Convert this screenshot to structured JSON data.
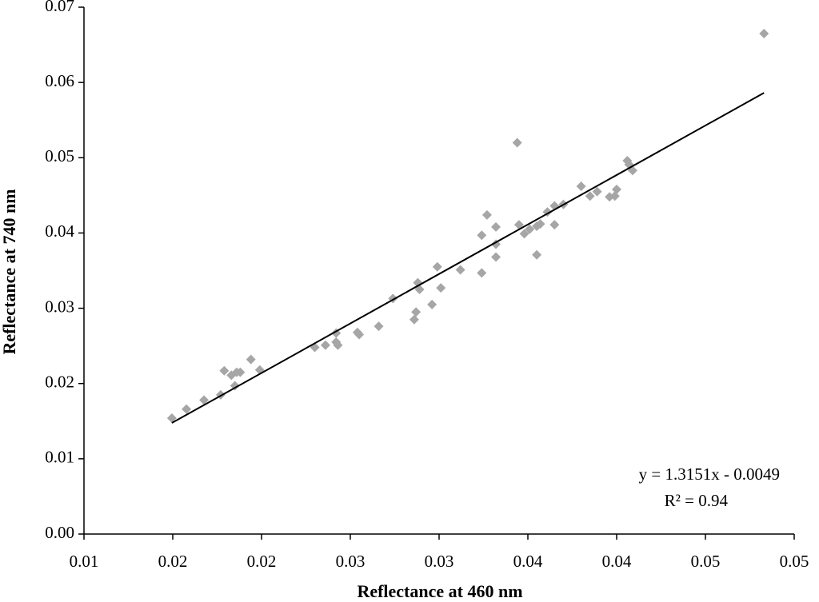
{
  "chart_data": {
    "type": "scatter",
    "x_label": "Reflectance at 460 nm",
    "y_label": "Reflectance at 740 nm",
    "annotations": [
      "y = 1.3151x - 0.0049",
      "R² = 0.94"
    ],
    "trendline": {
      "slope": 1.3151,
      "intercept": -0.0049
    },
    "color": "#a6a6a6",
    "line_color": "#000000",
    "grid": false,
    "xlim": [
      0.01,
      0.05
    ],
    "xticks": [
      0.01,
      {
        "value": 0.015,
        "label": "0.02"
      },
      0.02,
      {
        "value": 0.025,
        "label": "0.03"
      },
      0.03,
      {
        "value": 0.035,
        "label": "0.04"
      },
      0.04,
      {
        "value": 0.045,
        "label": "0.05"
      },
      0.05
    ],
    "ylim": [
      0,
      0.07
    ],
    "yticks": [
      {
        "value": 0,
        "label": "0.00"
      },
      0.01,
      0.02,
      0.03,
      0.04,
      0.05,
      0.06,
      0.07
    ],
    "x": [
      0.01495,
      0.01577,
      0.01676,
      0.0177,
      0.0179,
      0.0183,
      0.0185,
      0.0186,
      0.0188,
      0.0194,
      0.0199,
      0.023,
      0.0236,
      0.0242,
      0.0242,
      0.0243,
      0.0254,
      0.0255,
      0.0266,
      0.0274,
      0.0286,
      0.0287,
      0.0288,
      0.0289,
      0.0296,
      0.0299,
      0.0301,
      0.0312,
      0.0324,
      0.0324,
      0.0327,
      0.0332,
      0.0332,
      0.0332,
      0.0344,
      0.0345,
      0.0348,
      0.0351,
      0.0355,
      0.0355,
      0.0357,
      0.0361,
      0.0365,
      0.0365,
      0.037,
      0.038,
      0.0385,
      0.0389,
      0.0396,
      0.0399,
      0.04,
      0.0406,
      0.0407,
      0.0409,
      0.0483
    ],
    "values": [
      0.0154,
      0.0166,
      0.0178,
      0.0185,
      0.0217,
      0.0211,
      0.0197,
      0.0215,
      0.0215,
      0.0232,
      0.0218,
      0.0248,
      0.0251,
      0.0267,
      0.0255,
      0.0251,
      0.0268,
      0.0265,
      0.0276,
      0.0313,
      0.0285,
      0.0295,
      0.0334,
      0.0325,
      0.0305,
      0.0355,
      0.0327,
      0.0351,
      0.0347,
      0.0397,
      0.0424,
      0.0385,
      0.0408,
      0.0368,
      0.052,
      0.0411,
      0.0399,
      0.0405,
      0.0409,
      0.0371,
      0.0412,
      0.0428,
      0.0436,
      0.0411,
      0.0438,
      0.0462,
      0.0449,
      0.0455,
      0.0448,
      0.0449,
      0.0458,
      0.0496,
      0.0491,
      0.0483,
      0.0665
    ]
  }
}
